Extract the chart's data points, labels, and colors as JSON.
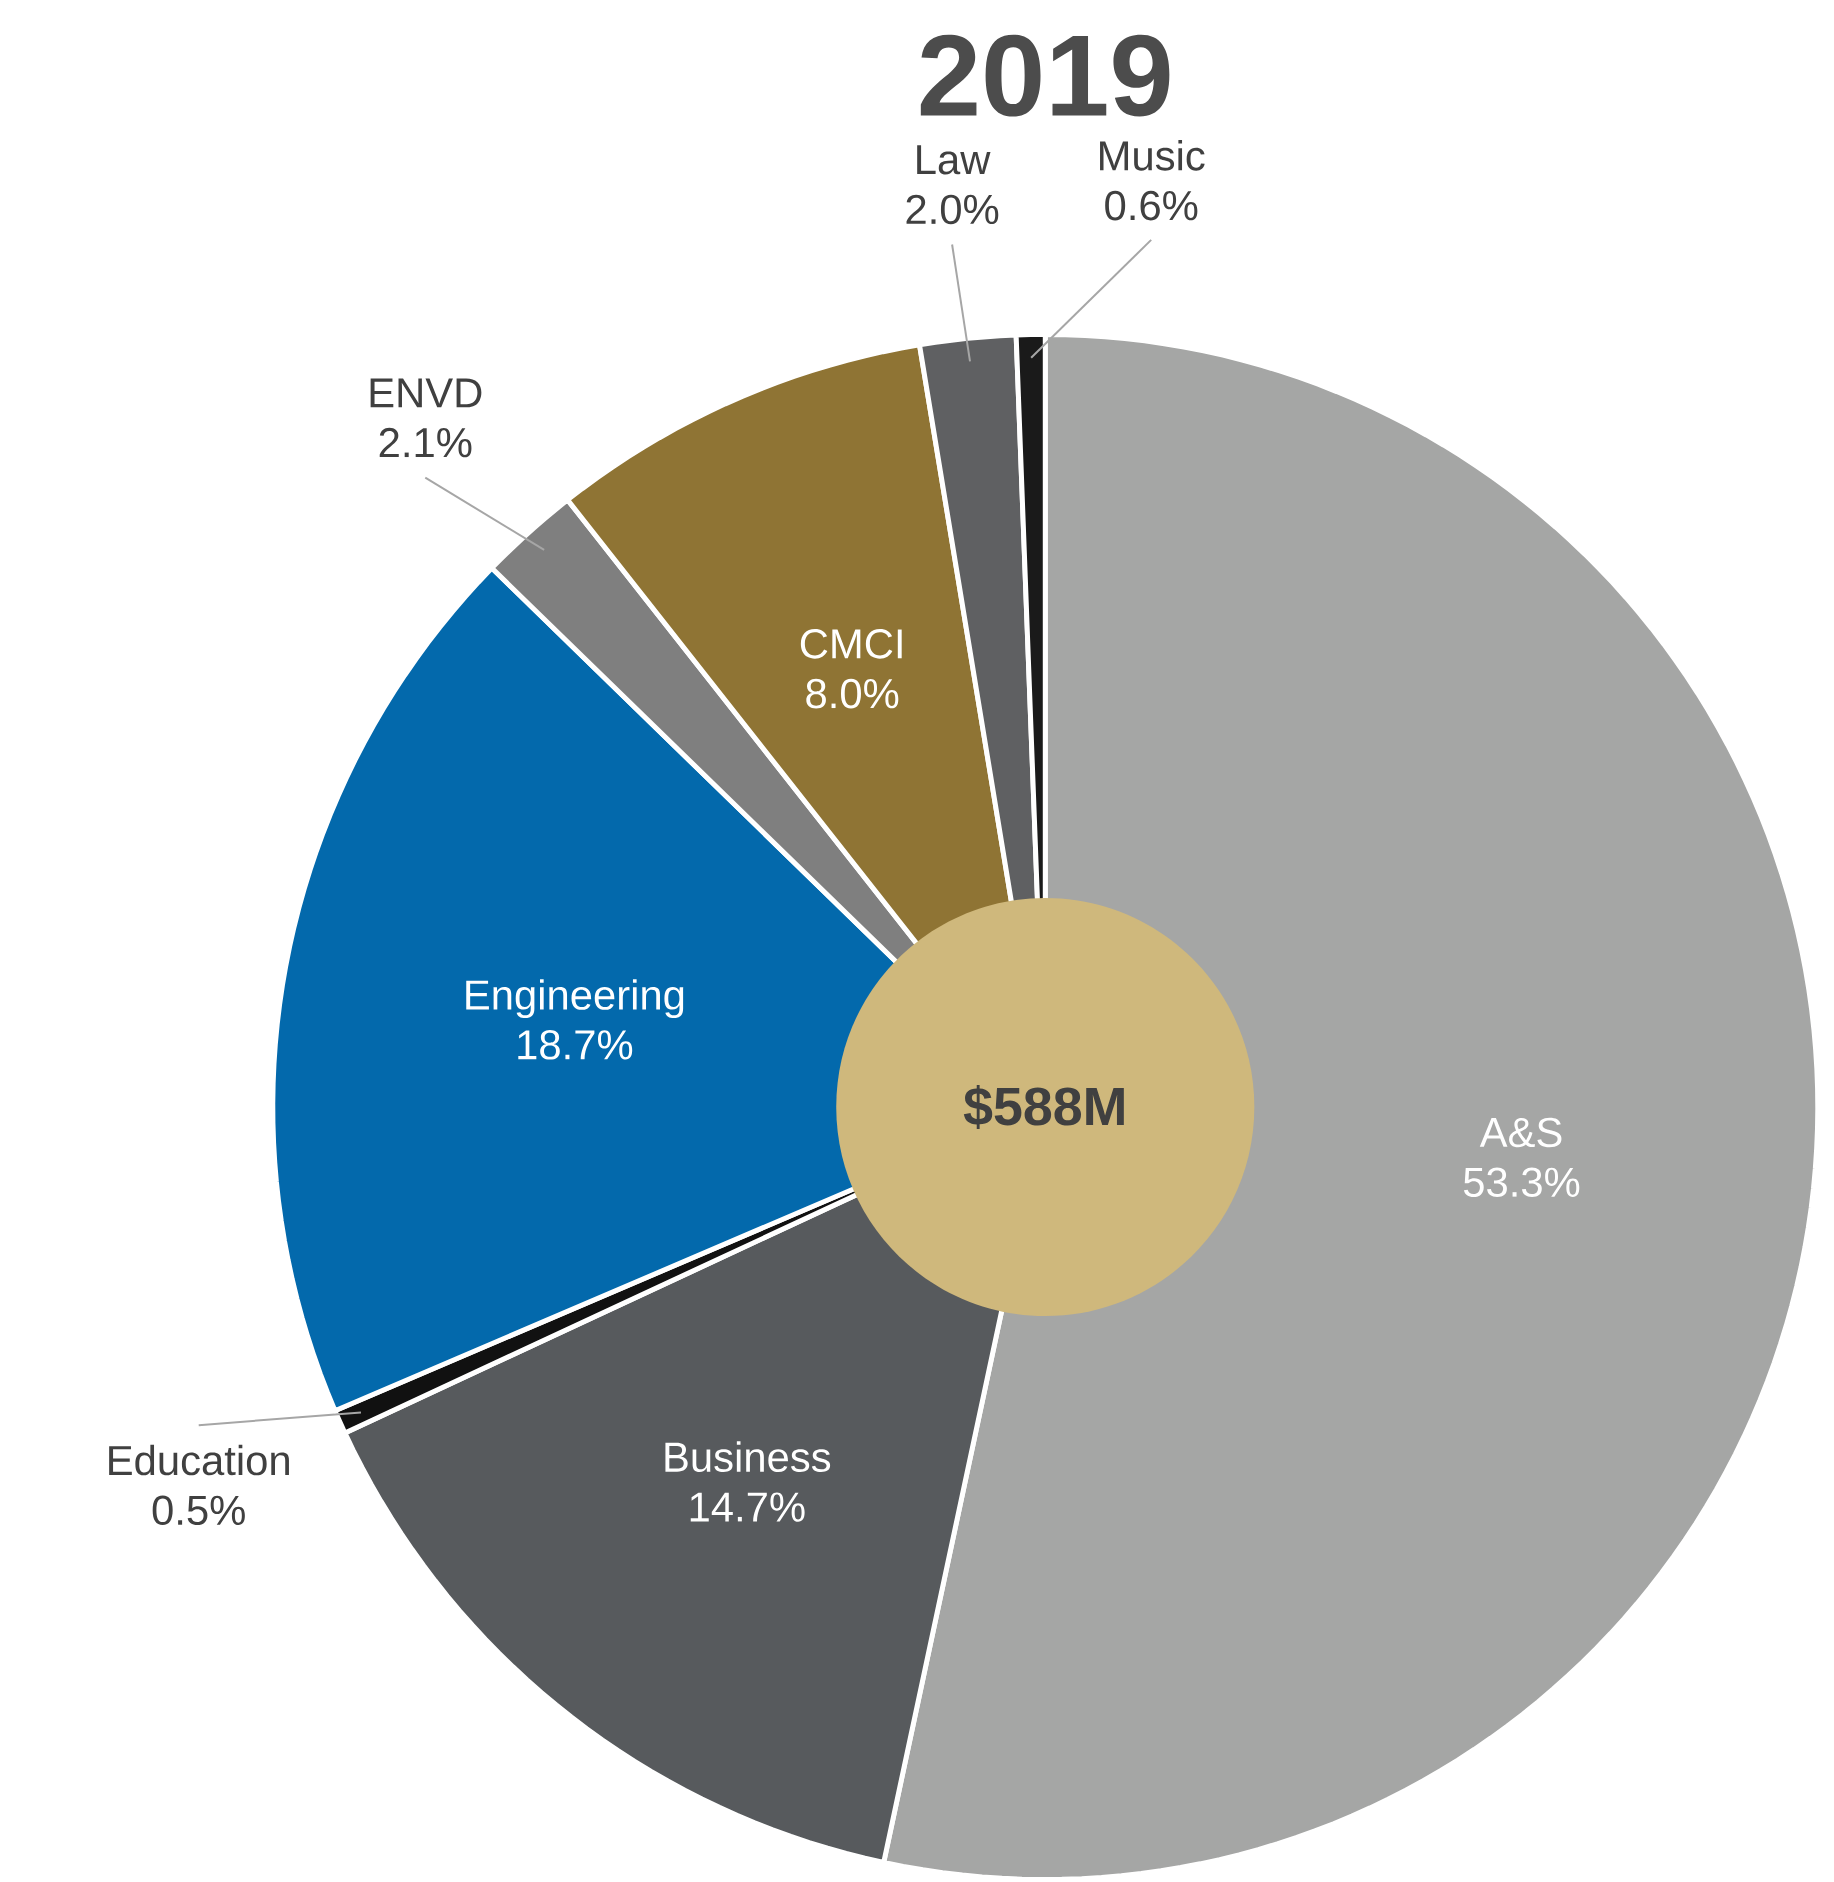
{
  "chart_data": {
    "type": "donut",
    "title": "2019",
    "categories": [
      "A&S",
      "Business",
      "Education",
      "Engineering",
      "ENVD",
      "CMCI",
      "Law",
      "Music"
    ],
    "values": [
      53.3,
      14.7,
      0.5,
      18.7,
      2.1,
      8.0,
      2.0,
      0.6
    ],
    "value_labels": [
      "53.3%",
      "14.7%",
      "0.5%",
      "18.7%",
      "2.1%",
      "8.0%",
      "2.0%",
      "0.6%"
    ],
    "colors": [
      "#a5a6a5",
      "#575a5d",
      "#111111",
      "#0369ac",
      "#7f7f7f",
      "#8f7434",
      "#5f6062",
      "#1a1a1a"
    ],
    "annotations": [
      "$588M"
    ]
  }
}
